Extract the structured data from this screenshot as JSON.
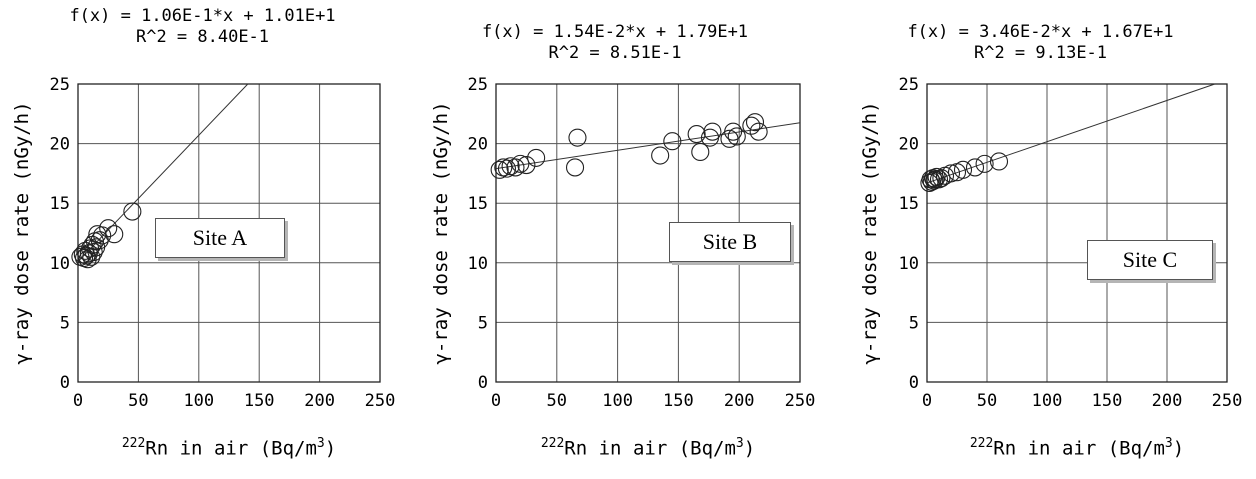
{
  "chart_data": [
    {
      "type": "scatter",
      "title": "f(x) = 1.06E-1*x + 1.01E+1",
      "subtitle": "R^2 = 8.40E-1",
      "site_label": "Site A",
      "ylabel": "γ-ray dose rate (nGy/h)",
      "xlabel_sup": "222",
      "xlabel_main": "Rn in air (Bq/m",
      "xlabel_unit_sup": "3",
      "xlabel_end": ")",
      "xlim": [
        0,
        250
      ],
      "ylim": [
        0,
        25
      ],
      "xticks": [
        0,
        50,
        100,
        150,
        200,
        250
      ],
      "yticks": [
        0,
        5,
        10,
        15,
        20,
        25
      ],
      "grid": true,
      "fit": {
        "slope": 0.106,
        "intercept": 10.1
      },
      "points": [
        [
          2,
          10.5
        ],
        [
          4,
          10.7
        ],
        [
          5,
          10.4
        ],
        [
          6,
          11
        ],
        [
          7,
          10.6
        ],
        [
          8,
          10.3
        ],
        [
          9,
          10.8
        ],
        [
          10,
          11.2
        ],
        [
          11,
          10.5
        ],
        [
          12,
          11.5
        ],
        [
          13,
          10.9
        ],
        [
          14,
          11.8
        ],
        [
          15,
          11.3
        ],
        [
          16,
          12.4
        ],
        [
          18,
          11.9
        ],
        [
          20,
          12.3
        ],
        [
          25,
          12.9
        ],
        [
          30,
          12.4
        ],
        [
          45,
          14.3
        ]
      ]
    },
    {
      "type": "scatter",
      "title": "f(x) = 1.54E-2*x + 1.79E+1",
      "subtitle": "R^2 = 8.51E-1",
      "site_label": "Site B",
      "ylabel": "γ-ray dose rate (nGy/h)",
      "xlabel_sup": "222",
      "xlabel_main": "Rn in air (Bq/m",
      "xlabel_unit_sup": "3",
      "xlabel_end": ")",
      "xlim": [
        0,
        250
      ],
      "ylim": [
        0,
        25
      ],
      "xticks": [
        0,
        50,
        100,
        150,
        200,
        250
      ],
      "yticks": [
        0,
        5,
        10,
        15,
        20,
        25
      ],
      "grid": true,
      "fit": {
        "slope": 0.0154,
        "intercept": 17.9
      },
      "points": [
        [
          3,
          17.8
        ],
        [
          6,
          18
        ],
        [
          9,
          17.9
        ],
        [
          12,
          18.1
        ],
        [
          16,
          18
        ],
        [
          20,
          18.3
        ],
        [
          25,
          18.2
        ],
        [
          33,
          18.8
        ],
        [
          65,
          18
        ],
        [
          67,
          20.5
        ],
        [
          135,
          19
        ],
        [
          145,
          20.2
        ],
        [
          165,
          20.8
        ],
        [
          168,
          19.3
        ],
        [
          176,
          20.5
        ],
        [
          178,
          21
        ],
        [
          192,
          20.4
        ],
        [
          195,
          21
        ],
        [
          198,
          20.6
        ],
        [
          210,
          21.5
        ],
        [
          213,
          21.8
        ],
        [
          216,
          21
        ]
      ]
    },
    {
      "type": "scatter",
      "title": "f(x) = 3.46E-2*x + 1.67E+1",
      "subtitle": "R^2 = 9.13E-1",
      "site_label": "Site C",
      "ylabel": "γ-ray dose rate (nGy/h)",
      "xlabel_sup": "222",
      "xlabel_main": "Rn in air (Bq/m",
      "xlabel_unit_sup": "3",
      "xlabel_end": ")",
      "xlim": [
        0,
        250
      ],
      "ylim": [
        0,
        25
      ],
      "xticks": [
        0,
        50,
        100,
        150,
        200,
        250
      ],
      "yticks": [
        0,
        5,
        10,
        15,
        20,
        25
      ],
      "grid": true,
      "fit": {
        "slope": 0.0346,
        "intercept": 16.7
      },
      "points": [
        [
          2,
          16.7
        ],
        [
          3,
          17
        ],
        [
          4,
          16.8
        ],
        [
          5,
          17.1
        ],
        [
          6,
          16.9
        ],
        [
          7,
          17
        ],
        [
          8,
          17.2
        ],
        [
          10,
          17
        ],
        [
          12,
          17.1
        ],
        [
          15,
          17.3
        ],
        [
          20,
          17.5
        ],
        [
          25,
          17.6
        ],
        [
          30,
          17.8
        ],
        [
          40,
          18
        ],
        [
          48,
          18.3
        ],
        [
          60,
          18.5
        ]
      ]
    }
  ]
}
